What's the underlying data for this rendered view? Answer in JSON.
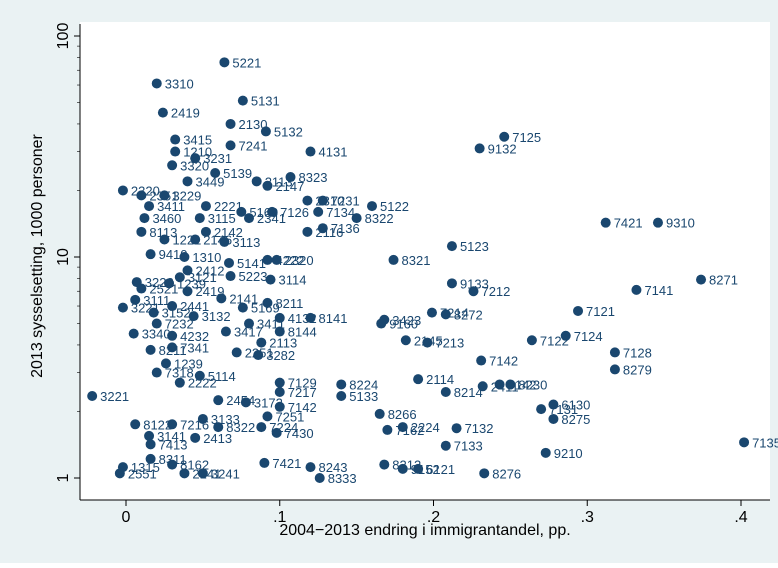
{
  "chart_data": {
    "type": "scatter",
    "xlabel": "2004−2013 endring i immigrantandel, pp.",
    "ylabel": "2013 sysselsetting, 1000 personer",
    "x_ticks": [
      {
        "value": 0,
        "label": "0"
      },
      {
        "value": 0.1,
        "label": ".1"
      },
      {
        "value": 0.2,
        "label": ".2"
      },
      {
        "value": 0.3,
        "label": ".3"
      },
      {
        "value": 0.4,
        "label": ".4"
      }
    ],
    "y_ticks": [
      {
        "value": 1,
        "label": "1"
      },
      {
        "value": 10,
        "label": "10"
      },
      {
        "value": 100,
        "label": "100"
      }
    ],
    "xlim": [
      -0.025,
      0.41
    ],
    "ylim": [
      1,
      100
    ],
    "y_scale": "log",
    "grid": false,
    "marker_color": "#1a476f",
    "label_color": "#1a476f",
    "points": [
      {
        "x": 0.064,
        "y": 76,
        "label": "5221"
      },
      {
        "x": 0.02,
        "y": 61,
        "label": "3310"
      },
      {
        "x": 0.076,
        "y": 51,
        "label": "5131"
      },
      {
        "x": 0.024,
        "y": 45,
        "label": "2419"
      },
      {
        "x": 0.068,
        "y": 40,
        "label": "2130"
      },
      {
        "x": 0.091,
        "y": 37,
        "label": "5132"
      },
      {
        "x": 0.032,
        "y": 34,
        "label": "3415"
      },
      {
        "x": 0.068,
        "y": 32,
        "label": "7241"
      },
      {
        "x": 0.12,
        "y": 30,
        "label": "4131"
      },
      {
        "x": 0.246,
        "y": 35,
        "label": "7125"
      },
      {
        "x": 0.23,
        "y": 31,
        "label": "9132"
      },
      {
        "x": 0.032,
        "y": 30,
        "label": "1210"
      },
      {
        "x": 0.045,
        "y": 28,
        "label": "3231"
      },
      {
        "x": 0.03,
        "y": 26,
        "label": "3320"
      },
      {
        "x": 0.058,
        "y": 24,
        "label": "5139"
      },
      {
        "x": 0.04,
        "y": 22,
        "label": "3449"
      },
      {
        "x": 0.085,
        "y": 22,
        "label": "2113"
      },
      {
        "x": 0.107,
        "y": 23,
        "label": "8323"
      },
      {
        "x": 0.092,
        "y": 21,
        "label": "2147"
      },
      {
        "x": -0.002,
        "y": 20,
        "label": "2320"
      },
      {
        "x": 0.01,
        "y": 19,
        "label": "2351"
      },
      {
        "x": 0.025,
        "y": 19,
        "label": "3229"
      },
      {
        "x": 0.052,
        "y": 17,
        "label": "2221"
      },
      {
        "x": 0.118,
        "y": 18,
        "label": "2310"
      },
      {
        "x": 0.128,
        "y": 18,
        "label": "7231"
      },
      {
        "x": 0.16,
        "y": 17,
        "label": "5122"
      },
      {
        "x": 0.015,
        "y": 17,
        "label": "3411"
      },
      {
        "x": 0.125,
        "y": 16,
        "label": "7134"
      },
      {
        "x": 0.15,
        "y": 15,
        "label": "8322"
      },
      {
        "x": 0.095,
        "y": 16,
        "label": "7126"
      },
      {
        "x": 0.075,
        "y": 16,
        "label": "5169"
      },
      {
        "x": 0.012,
        "y": 15,
        "label": "3460"
      },
      {
        "x": 0.048,
        "y": 15,
        "label": "3115"
      },
      {
        "x": 0.08,
        "y": 15,
        "label": "2341"
      },
      {
        "x": 0.128,
        "y": 13.5,
        "label": "7136"
      },
      {
        "x": 0.118,
        "y": 13,
        "label": "2116"
      },
      {
        "x": 0.01,
        "y": 13,
        "label": "8113"
      },
      {
        "x": 0.052,
        "y": 13,
        "label": "2142"
      },
      {
        "x": 0.312,
        "y": 14.3,
        "label": "7421"
      },
      {
        "x": 0.346,
        "y": 14.3,
        "label": "9310"
      },
      {
        "x": 0.025,
        "y": 12,
        "label": "1221"
      },
      {
        "x": 0.045,
        "y": 12,
        "label": "2146"
      },
      {
        "x": 0.064,
        "y": 11.7,
        "label": "3113"
      },
      {
        "x": 0.212,
        "y": 11.2,
        "label": "5123"
      },
      {
        "x": 0.016,
        "y": 10.3,
        "label": "9410"
      },
      {
        "x": 0.038,
        "y": 10,
        "label": "1310"
      },
      {
        "x": 0.067,
        "y": 9.4,
        "label": "5141"
      },
      {
        "x": 0.092,
        "y": 9.7,
        "label": "4222"
      },
      {
        "x": 0.098,
        "y": 9.7,
        "label": "2320"
      },
      {
        "x": 0.174,
        "y": 9.7,
        "label": "8321"
      },
      {
        "x": 0.04,
        "y": 8.7,
        "label": "2412"
      },
      {
        "x": 0.035,
        "y": 8.1,
        "label": "3121"
      },
      {
        "x": 0.068,
        "y": 8.2,
        "label": "5223"
      },
      {
        "x": 0.094,
        "y": 7.9,
        "label": "3114"
      },
      {
        "x": 0.007,
        "y": 7.7,
        "label": "3222"
      },
      {
        "x": 0.028,
        "y": 7.6,
        "label": "1239"
      },
      {
        "x": 0.212,
        "y": 7.6,
        "label": "9133"
      },
      {
        "x": 0.226,
        "y": 7.0,
        "label": "7212"
      },
      {
        "x": 0.374,
        "y": 7.9,
        "label": "8271"
      },
      {
        "x": 0.332,
        "y": 7.1,
        "label": "7141"
      },
      {
        "x": 0.01,
        "y": 7.2,
        "label": "2521"
      },
      {
        "x": 0.04,
        "y": 7.0,
        "label": "2419"
      },
      {
        "x": 0.006,
        "y": 6.4,
        "label": "3111"
      },
      {
        "x": 0.062,
        "y": 6.5,
        "label": "2141"
      },
      {
        "x": 0.092,
        "y": 6.2,
        "label": "8211"
      },
      {
        "x": 0.03,
        "y": 6.0,
        "label": "2441"
      },
      {
        "x": 0.076,
        "y": 5.9,
        "label": "5169"
      },
      {
        "x": -0.002,
        "y": 5.9,
        "label": "3221"
      },
      {
        "x": 0.018,
        "y": 5.6,
        "label": "3152"
      },
      {
        "x": 0.199,
        "y": 5.6,
        "label": "7214"
      },
      {
        "x": 0.208,
        "y": 5.5,
        "label": "8272"
      },
      {
        "x": 0.294,
        "y": 5.7,
        "label": "7121"
      },
      {
        "x": 0.044,
        "y": 5.4,
        "label": "3132"
      },
      {
        "x": 0.1,
        "y": 5.3,
        "label": "4132"
      },
      {
        "x": 0.12,
        "y": 5.3,
        "label": "8141"
      },
      {
        "x": 0.168,
        "y": 5.2,
        "label": "3423"
      },
      {
        "x": 0.166,
        "y": 5.0,
        "label": "9160"
      },
      {
        "x": 0.08,
        "y": 5.0,
        "label": "3411"
      },
      {
        "x": 0.02,
        "y": 5.0,
        "label": "7232"
      },
      {
        "x": 0.005,
        "y": 4.5,
        "label": "3340"
      },
      {
        "x": 0.03,
        "y": 4.4,
        "label": "4232"
      },
      {
        "x": 0.065,
        "y": 4.6,
        "label": "3417"
      },
      {
        "x": 0.1,
        "y": 4.6,
        "label": "8144"
      },
      {
        "x": 0.286,
        "y": 4.4,
        "label": "7124"
      },
      {
        "x": 0.264,
        "y": 4.2,
        "label": "7122"
      },
      {
        "x": 0.182,
        "y": 4.2,
        "label": "2145"
      },
      {
        "x": 0.196,
        "y": 4.1,
        "label": "7213"
      },
      {
        "x": 0.088,
        "y": 4.1,
        "label": "2113"
      },
      {
        "x": 0.03,
        "y": 3.9,
        "label": "7341"
      },
      {
        "x": 0.016,
        "y": 3.8,
        "label": "8211"
      },
      {
        "x": 0.072,
        "y": 3.7,
        "label": "2251"
      },
      {
        "x": 0.086,
        "y": 3.6,
        "label": "3282"
      },
      {
        "x": 0.318,
        "y": 3.7,
        "label": "7128"
      },
      {
        "x": 0.231,
        "y": 3.4,
        "label": "7142"
      },
      {
        "x": 0.026,
        "y": 3.3,
        "label": "1239"
      },
      {
        "x": 0.318,
        "y": 3.1,
        "label": "8279"
      },
      {
        "x": 0.02,
        "y": 3.0,
        "label": "7318"
      },
      {
        "x": 0.048,
        "y": 2.9,
        "label": "5114"
      },
      {
        "x": 0.035,
        "y": 2.7,
        "label": "2222"
      },
      {
        "x": 0.19,
        "y": 2.8,
        "label": "2114"
      },
      {
        "x": 0.1,
        "y": 2.7,
        "label": "7129"
      },
      {
        "x": 0.14,
        "y": 2.65,
        "label": "8224"
      },
      {
        "x": 0.243,
        "y": 2.65,
        "label": "9142"
      },
      {
        "x": 0.25,
        "y": 2.65,
        "label": "8230"
      },
      {
        "x": 0.208,
        "y": 2.45,
        "label": "8214"
      },
      {
        "x": 0.232,
        "y": 2.6,
        "label": "2411"
      },
      {
        "x": -0.022,
        "y": 2.35,
        "label": "3221"
      },
      {
        "x": 0.1,
        "y": 2.45,
        "label": "7217"
      },
      {
        "x": 0.14,
        "y": 2.35,
        "label": "5133"
      },
      {
        "x": 0.06,
        "y": 2.25,
        "label": "2454"
      },
      {
        "x": 0.078,
        "y": 2.2,
        "label": "3172"
      },
      {
        "x": 0.1,
        "y": 2.1,
        "label": "7142"
      },
      {
        "x": 0.278,
        "y": 2.15,
        "label": "6130"
      },
      {
        "x": 0.27,
        "y": 2.05,
        "label": "7131"
      },
      {
        "x": 0.165,
        "y": 1.95,
        "label": "8266"
      },
      {
        "x": 0.092,
        "y": 1.9,
        "label": "7251"
      },
      {
        "x": 0.05,
        "y": 1.85,
        "label": "3133"
      },
      {
        "x": 0.278,
        "y": 1.85,
        "label": "8275"
      },
      {
        "x": 0.006,
        "y": 1.75,
        "label": "8122"
      },
      {
        "x": 0.03,
        "y": 1.75,
        "label": "7216"
      },
      {
        "x": 0.06,
        "y": 1.7,
        "label": "8322"
      },
      {
        "x": 0.088,
        "y": 1.7,
        "label": "7224"
      },
      {
        "x": 0.17,
        "y": 1.65,
        "label": "7162"
      },
      {
        "x": 0.18,
        "y": 1.7,
        "label": "2224"
      },
      {
        "x": 0.215,
        "y": 1.68,
        "label": "7132"
      },
      {
        "x": 0.098,
        "y": 1.6,
        "label": "7430"
      },
      {
        "x": 0.015,
        "y": 1.55,
        "label": "3141"
      },
      {
        "x": 0.045,
        "y": 1.52,
        "label": "2413"
      },
      {
        "x": 0.016,
        "y": 1.42,
        "label": "7413"
      },
      {
        "x": 0.208,
        "y": 1.4,
        "label": "7133"
      },
      {
        "x": 0.402,
        "y": 1.45,
        "label": "7135"
      },
      {
        "x": 0.273,
        "y": 1.3,
        "label": "9210"
      },
      {
        "x": 0.016,
        "y": 1.22,
        "label": "8311"
      },
      {
        "x": -0.002,
        "y": 1.12,
        "label": "1315"
      },
      {
        "x": 0.03,
        "y": 1.15,
        "label": "8162"
      },
      {
        "x": 0.09,
        "y": 1.17,
        "label": "7421"
      },
      {
        "x": 0.12,
        "y": 1.12,
        "label": "8243"
      },
      {
        "x": 0.168,
        "y": 1.15,
        "label": "8212"
      },
      {
        "x": 0.18,
        "y": 1.1,
        "label": "9152"
      },
      {
        "x": 0.19,
        "y": 1.1,
        "label": "6121"
      },
      {
        "x": -0.004,
        "y": 1.05,
        "label": "2551"
      },
      {
        "x": 0.038,
        "y": 1.05,
        "label": "2141"
      },
      {
        "x": 0.05,
        "y": 1.05,
        "label": "3241"
      },
      {
        "x": 0.126,
        "y": 1.0,
        "label": "8333"
      },
      {
        "x": 0.233,
        "y": 1.05,
        "label": "8276"
      }
    ]
  }
}
